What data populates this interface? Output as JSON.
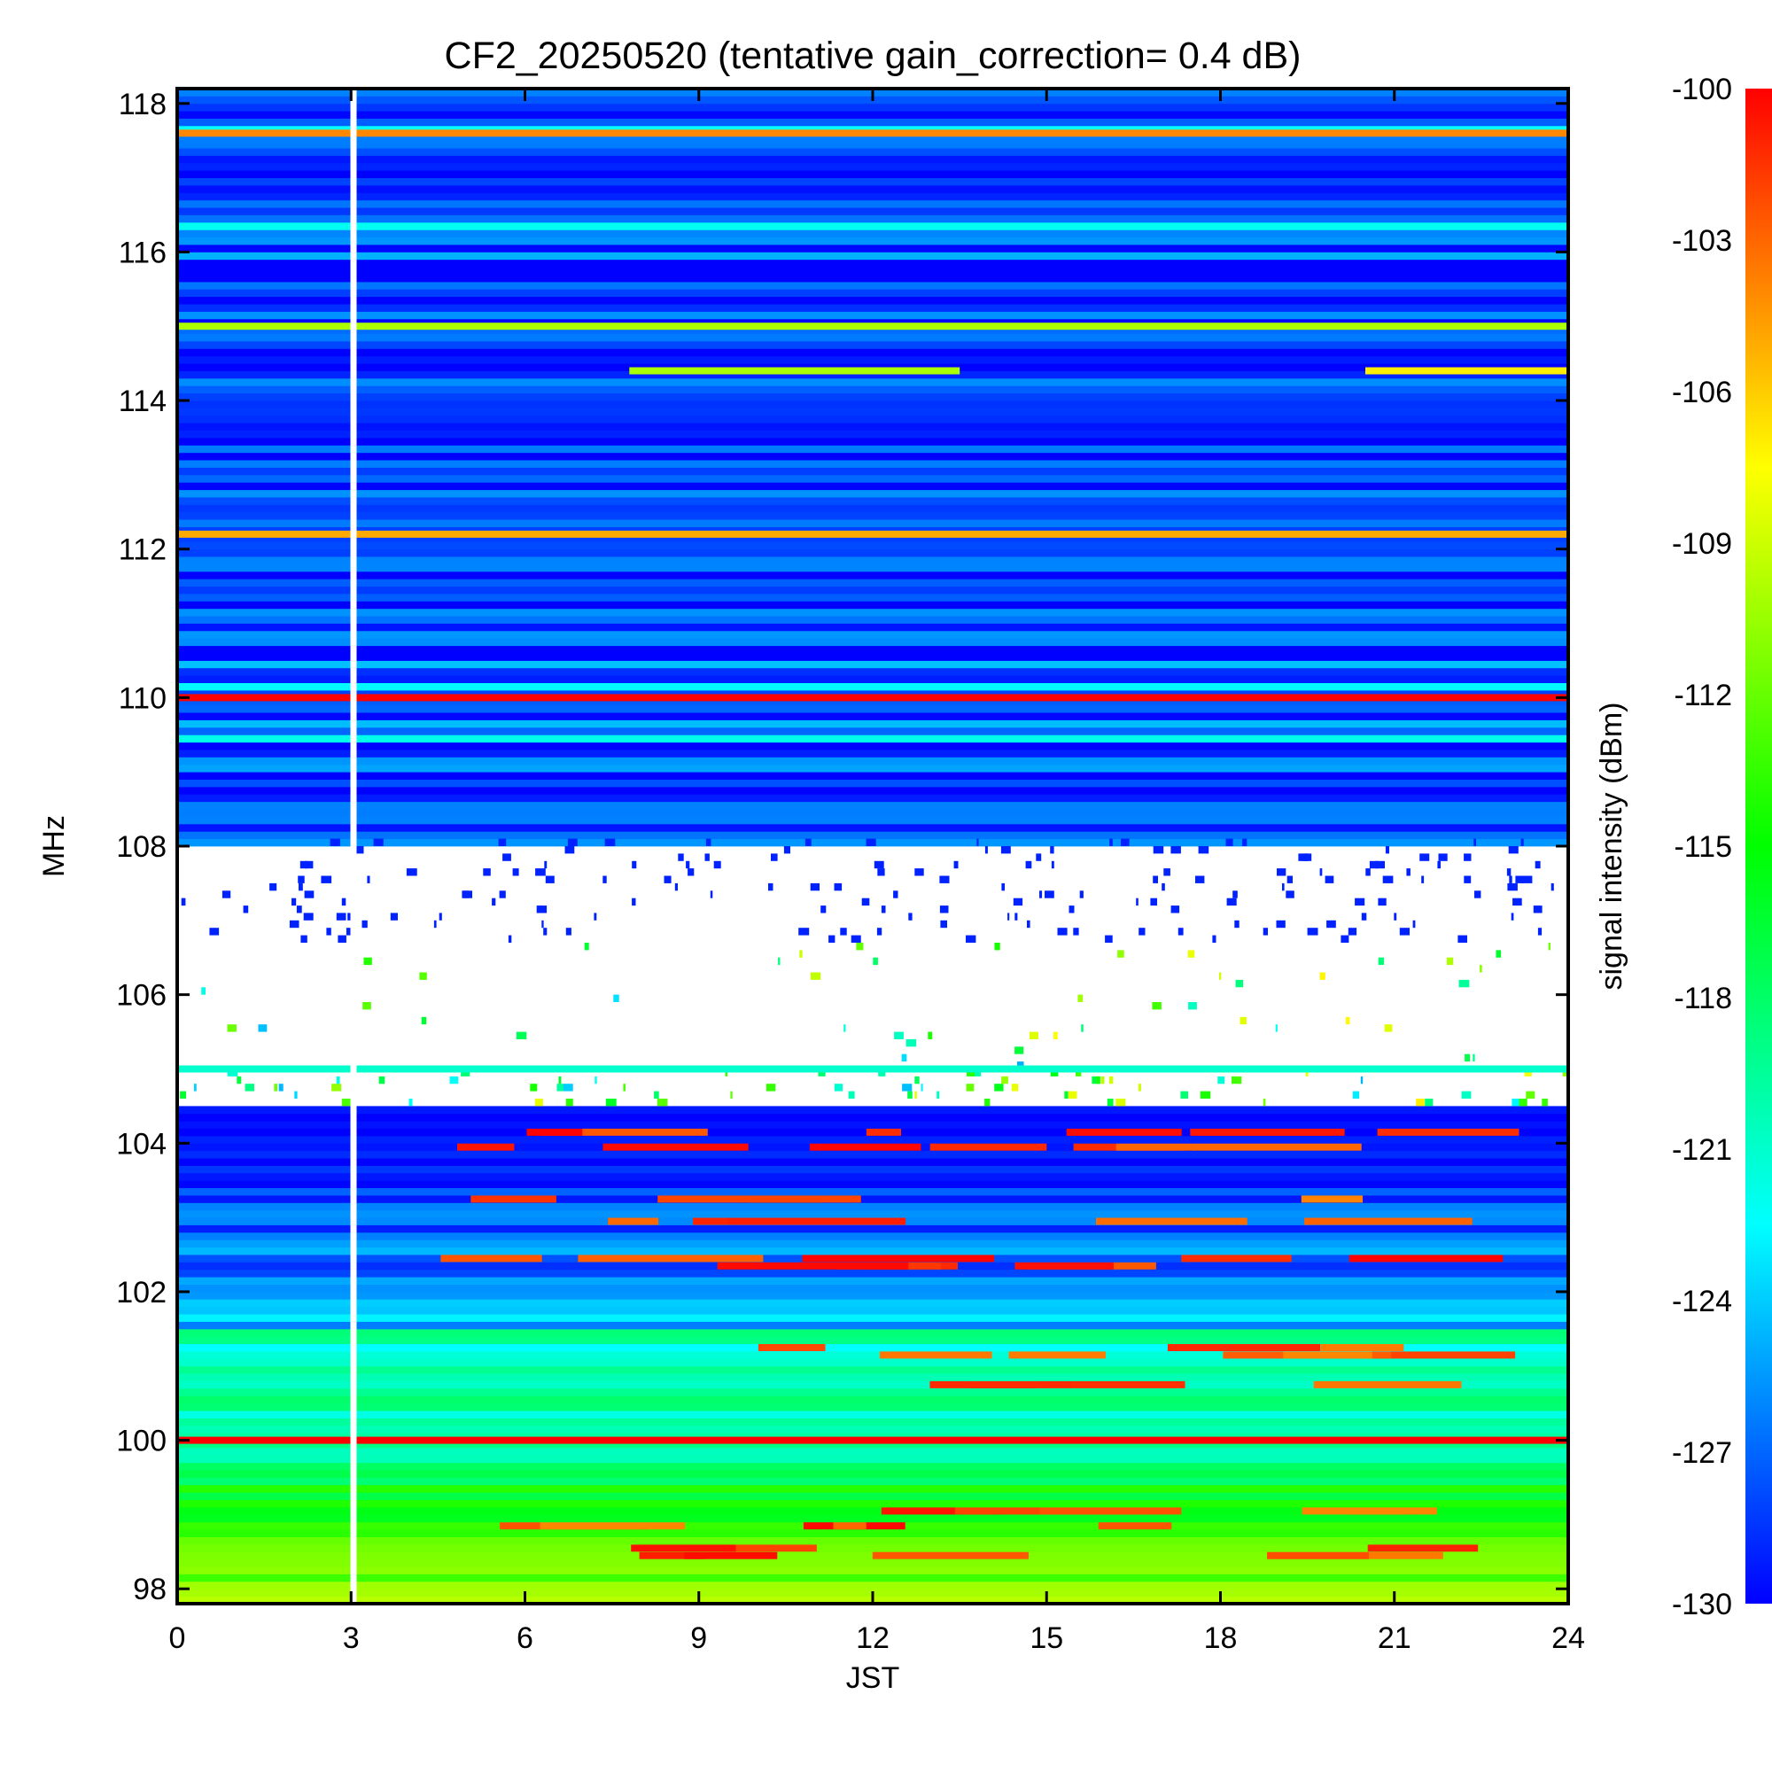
{
  "chart_data": {
    "type": "heatmap",
    "title": "CF2_20250520 (tentative gain_correction=  0.4 dB)",
    "xlabel": "JST",
    "ylabel": "MHz",
    "xlim": [
      0,
      24
    ],
    "ylim": [
      97.8,
      118.2
    ],
    "xticks": [
      0,
      3,
      6,
      9,
      12,
      15,
      18,
      21,
      24
    ],
    "yticks": [
      98,
      100,
      102,
      104,
      106,
      108,
      110,
      112,
      114,
      116,
      118
    ],
    "colorbar": {
      "label": "signal intensity (dBm)",
      "range": [
        -130,
        -100
      ],
      "ticks": [
        -100,
        -103,
        -106,
        -109,
        -112,
        -115,
        -118,
        -121,
        -124,
        -127,
        -130
      ],
      "colormap": [
        "#0000ff",
        "#00ffff",
        "#00ff00",
        "#ffff00",
        "#ff0000"
      ]
    },
    "data_gap": {
      "x": 3.05,
      "description": "vertical blank column"
    },
    "strong_lines": [
      {
        "freq": 117.6,
        "start": 0,
        "end": 24,
        "level": -104
      },
      {
        "freq": 115.0,
        "start": 0,
        "end": 24,
        "level": -110
      },
      {
        "freq": 114.4,
        "start": 7.8,
        "end": 13.5,
        "level": -110
      },
      {
        "freq": 114.4,
        "start": 20.5,
        "end": 24,
        "level": -107
      },
      {
        "freq": 112.2,
        "start": 0,
        "end": 24,
        "level": -105
      },
      {
        "freq": 110.0,
        "start": 0,
        "end": 24,
        "level": -100
      },
      {
        "freq": 105.0,
        "start": 0,
        "end": 24,
        "level": -121
      },
      {
        "freq": 100.0,
        "start": 0,
        "end": 24,
        "level": -100
      }
    ]
  },
  "colors": {
    "low": "#0000ff",
    "mid": "#00ff00",
    "high": "#ff0000",
    "gap": "#ffffff"
  }
}
